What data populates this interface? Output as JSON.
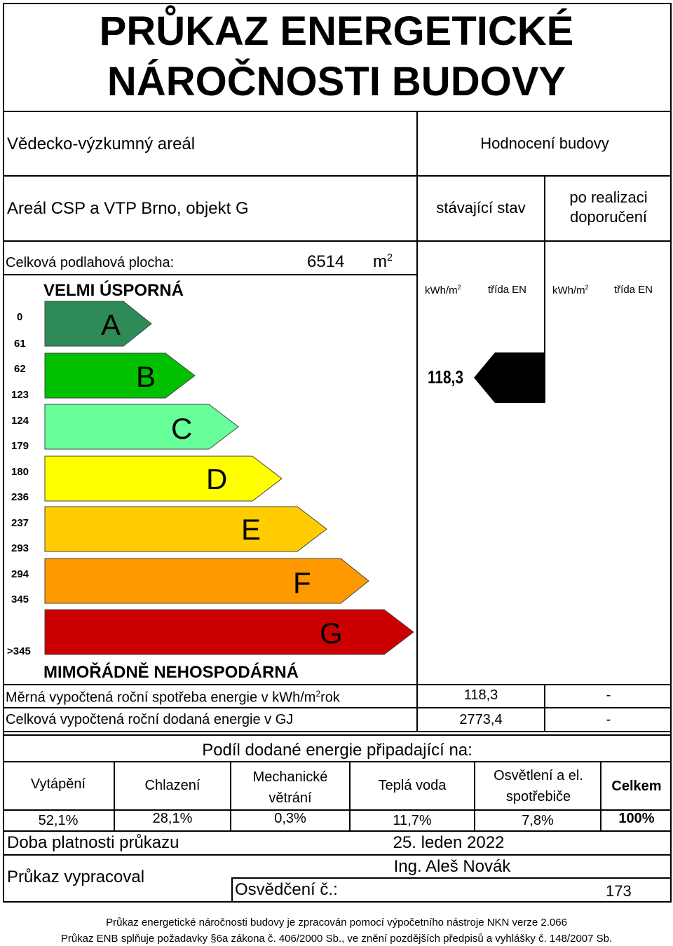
{
  "title": {
    "line1": "PRŮKAZ  ENERGETICKÉ",
    "line2": "NÁROČNOSTI  BUDOVY"
  },
  "building": {
    "type": "Vědecko-výzkumný areál",
    "name": "Areál CSP a VTP Brno, objekt G",
    "floor_area_label": "Celková podlahová plocha:",
    "floor_area_value": "6514",
    "floor_area_unit": "m"
  },
  "rating_header": {
    "title": "Hodnocení budovy",
    "current": "stávající stav",
    "after": "po realizaci doporučení"
  },
  "column_headers": {
    "kwh_current": "kWh/m",
    "class_current": "třída EN",
    "kwh_after": "kWh/m",
    "class_after": "třída EN"
  },
  "scale": {
    "top_label": "VELMI ÚSPORNÁ",
    "bottom_label": "MIMOŘÁDNĚ NEHOSPODÁRNÁ",
    "classes": [
      {
        "letter": "A",
        "from": "0",
        "to": "61",
        "color": "#2e8b57"
      },
      {
        "letter": "B",
        "from": "62",
        "to": "123",
        "color": "#00c000"
      },
      {
        "letter": "C",
        "from": "124",
        "to": "179",
        "color": "#66ff99"
      },
      {
        "letter": "D",
        "from": "180",
        "to": "236",
        "color": "#ffff00"
      },
      {
        "letter": "E",
        "from": "237",
        "to": "293",
        "color": "#ffcc00"
      },
      {
        "letter": "F",
        "from": "294",
        "to": "345",
        "color": "#ff9900"
      },
      {
        "letter": "G",
        "from": "",
        "to": ">345",
        "color": "#cc0000"
      }
    ]
  },
  "current_rating": {
    "value": "118,3",
    "class": "B",
    "indicator_color": "#000000"
  },
  "results": {
    "specific_label": "Měrná vypočtená roční spotřeba energie v kWh/m",
    "specific_unit": "rok",
    "specific_current": "118,3",
    "specific_after": "-",
    "total_label": "Celková vypočtená roční dodaná energie v GJ",
    "total_current": "2773,4",
    "total_after": "-"
  },
  "shares": {
    "title": "Podíl dodané energie připadající na:",
    "items": [
      {
        "label": "Vytápění",
        "value": "52,1%"
      },
      {
        "label": "Chlazení",
        "value": "28,1%"
      },
      {
        "label": "Mechanické větrání",
        "value": "0,3%"
      },
      {
        "label": "Teplá voda",
        "value": "11,7%"
      },
      {
        "label": "Osvětlení a el. spotřebiče",
        "value": "7,8%"
      },
      {
        "label": "Celkem",
        "value": "100%"
      }
    ]
  },
  "validity": {
    "label": "Doba platnosti průkazu",
    "value": "25. leden 2022"
  },
  "author": {
    "label": "Průkaz vypracoval",
    "name": "Ing. Aleš Novák",
    "cert_label": "Osvědčení č.:",
    "cert_number": "173"
  },
  "footer": {
    "line1": "Průkaz energetické náročnosti budovy je zpracován pomocí výpočetního nástroje NKN verze 2.066",
    "line2": "Průkaz ENB splňuje požadavky §6a zákona č. 406/2000 Sb., ve znění pozdějších předpisů a vyhlášky č. 148/2007 Sb."
  }
}
